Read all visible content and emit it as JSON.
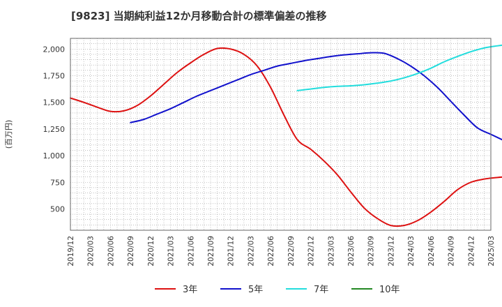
{
  "chart_data": {
    "type": "line",
    "title": "[9823]  当期純利益12か月移動合計の標準偏差の推移",
    "ylabel": "(百万円)",
    "ylim": [
      300,
      2100
    ],
    "yticks": [
      500,
      750,
      1000,
      1250,
      1500,
      1750,
      2000
    ],
    "ytick_labels": [
      "500",
      "750",
      "1,000",
      "1,250",
      "1,500",
      "1,750",
      "2,000"
    ],
    "xlim": [
      "2019-12",
      "2025-03"
    ],
    "xtick_labels": [
      "2019/12",
      "2020/03",
      "2020/06",
      "2020/09",
      "2020/12",
      "2021/03",
      "2021/06",
      "2021/09",
      "2021/12",
      "2022/03",
      "2022/06",
      "2022/09",
      "2022/12",
      "2023/03",
      "2023/06",
      "2023/09",
      "2023/12",
      "2024/03",
      "2024/06",
      "2024/09",
      "2024/12",
      "2025/03"
    ],
    "grid": true,
    "legend_position": "bottom",
    "series": [
      {
        "name": "3年",
        "color": "#dd1111",
        "points": [
          [
            "2019-12",
            1540
          ],
          [
            "2020-02",
            1500
          ],
          [
            "2020-04",
            1455
          ],
          [
            "2020-06",
            1415
          ],
          [
            "2020-08",
            1420
          ],
          [
            "2020-10",
            1470
          ],
          [
            "2020-12",
            1560
          ],
          [
            "2021-02",
            1670
          ],
          [
            "2021-04",
            1780
          ],
          [
            "2021-06",
            1870
          ],
          [
            "2021-08",
            1950
          ],
          [
            "2021-10",
            2005
          ],
          [
            "2021-12",
            2000
          ],
          [
            "2022-02",
            1950
          ],
          [
            "2022-04",
            1840
          ],
          [
            "2022-06",
            1640
          ],
          [
            "2022-08",
            1380
          ],
          [
            "2022-10",
            1150
          ],
          [
            "2022-12",
            1060
          ],
          [
            "2023-02",
            950
          ],
          [
            "2023-04",
            820
          ],
          [
            "2023-06",
            660
          ],
          [
            "2023-08",
            510
          ],
          [
            "2023-10",
            410
          ],
          [
            "2023-12",
            345
          ],
          [
            "2024-02",
            345
          ],
          [
            "2024-04",
            390
          ],
          [
            "2024-06",
            470
          ],
          [
            "2024-08",
            570
          ],
          [
            "2024-10",
            680
          ],
          [
            "2024-12",
            750
          ],
          [
            "2025-02",
            780
          ],
          [
            "2025-04",
            795
          ],
          [
            "2025-06",
            805
          ]
        ]
      },
      {
        "name": "5年",
        "color": "#1111cc",
        "points": [
          [
            "2020-09",
            1310
          ],
          [
            "2020-11",
            1340
          ],
          [
            "2021-01",
            1390
          ],
          [
            "2021-03",
            1440
          ],
          [
            "2021-05",
            1500
          ],
          [
            "2021-07",
            1560
          ],
          [
            "2021-09",
            1610
          ],
          [
            "2021-11",
            1660
          ],
          [
            "2022-01",
            1710
          ],
          [
            "2022-03",
            1760
          ],
          [
            "2022-05",
            1800
          ],
          [
            "2022-07",
            1840
          ],
          [
            "2022-09",
            1865
          ],
          [
            "2022-11",
            1890
          ],
          [
            "2023-01",
            1910
          ],
          [
            "2023-03",
            1930
          ],
          [
            "2023-05",
            1945
          ],
          [
            "2023-07",
            1955
          ],
          [
            "2023-09",
            1965
          ],
          [
            "2023-11",
            1960
          ],
          [
            "2024-01",
            1910
          ],
          [
            "2024-03",
            1840
          ],
          [
            "2024-05",
            1750
          ],
          [
            "2024-07",
            1640
          ],
          [
            "2024-09",
            1510
          ],
          [
            "2024-11",
            1380
          ],
          [
            "2025-01",
            1260
          ],
          [
            "2025-03",
            1200
          ],
          [
            "2025-05",
            1140
          ],
          [
            "2025-07",
            1080
          ]
        ]
      },
      {
        "name": "7年",
        "color": "#22dddd",
        "points": [
          [
            "2022-10",
            1610
          ],
          [
            "2022-12",
            1625
          ],
          [
            "2023-02",
            1640
          ],
          [
            "2023-04",
            1650
          ],
          [
            "2023-06",
            1655
          ],
          [
            "2023-08",
            1665
          ],
          [
            "2023-10",
            1680
          ],
          [
            "2023-12",
            1700
          ],
          [
            "2024-02",
            1730
          ],
          [
            "2024-04",
            1770
          ],
          [
            "2024-06",
            1820
          ],
          [
            "2024-08",
            1880
          ],
          [
            "2024-10",
            1930
          ],
          [
            "2024-12",
            1975
          ],
          [
            "2025-02",
            2010
          ],
          [
            "2025-04",
            2030
          ],
          [
            "2025-07",
            2055
          ]
        ]
      },
      {
        "name": "10年",
        "color": "#228822",
        "points": []
      }
    ]
  }
}
